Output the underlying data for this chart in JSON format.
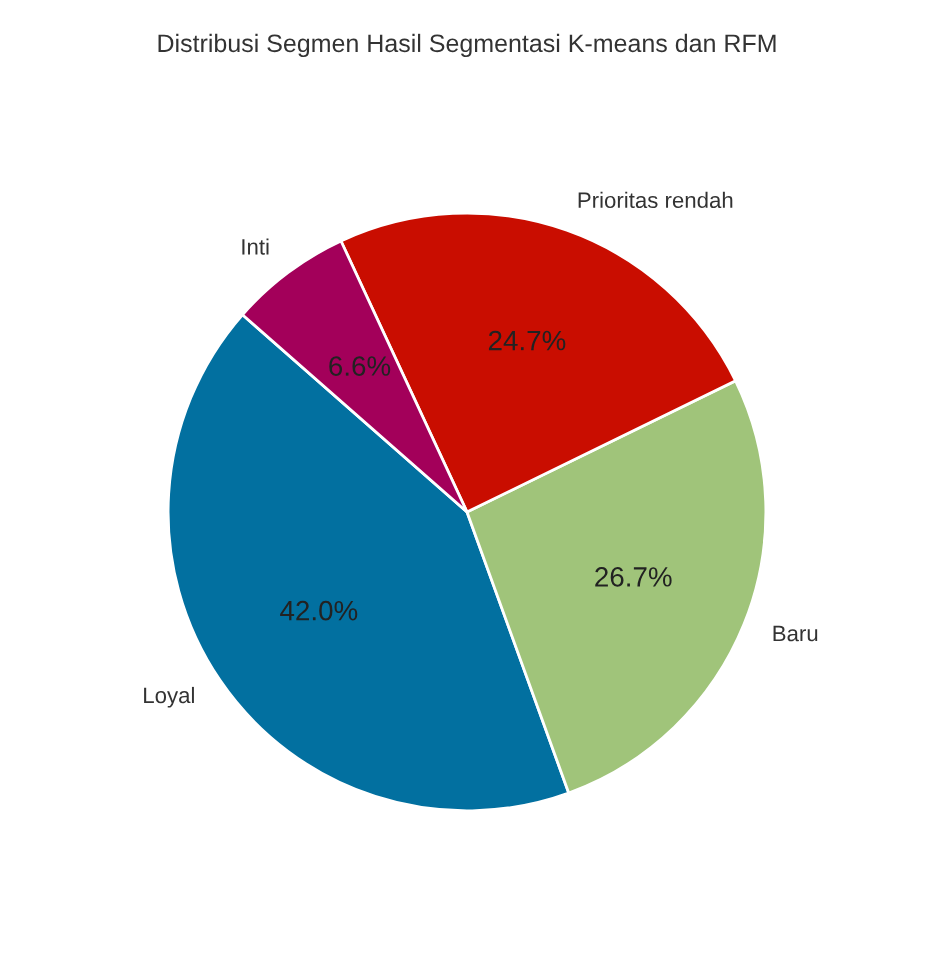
{
  "chart_data": {
    "type": "pie",
    "title": "Distribusi Segmen Hasil Segmentasi K-means dan RFM",
    "categories": [
      "Loyal",
      "Baru",
      "Prioritas rendah",
      "Inti"
    ],
    "values": [
      42.0,
      26.7,
      24.7,
      6.6
    ],
    "colors": [
      "#0270a0",
      "#a0c47a",
      "#c90d00",
      "#a3005a"
    ],
    "value_labels": [
      "42.0%",
      "26.7%",
      "24.7%",
      "6.6%"
    ]
  }
}
